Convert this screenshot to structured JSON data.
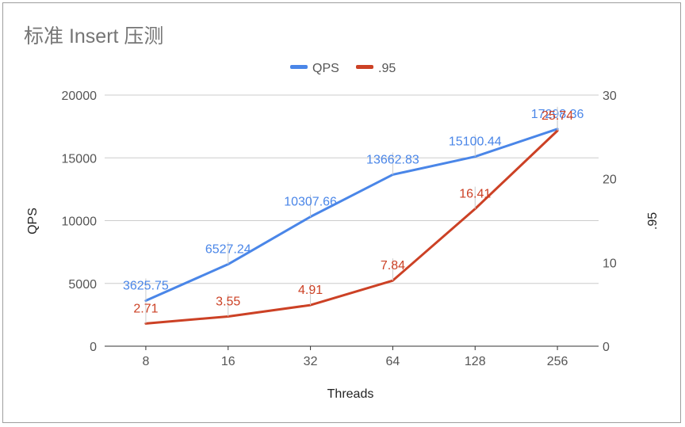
{
  "chart_data": {
    "type": "line",
    "title": "标准 Insert 压测",
    "xlabel": "Threads",
    "ylabel_left": "QPS",
    "ylabel_right": ".95",
    "categories": [
      "8",
      "16",
      "32",
      "64",
      "128",
      "256"
    ],
    "y_left": {
      "ylim": [
        0,
        20000
      ],
      "ticks": [
        "0",
        "5000",
        "10000",
        "15000",
        "20000"
      ]
    },
    "y_right": {
      "ylim": [
        0,
        30
      ],
      "ticks": [
        "0",
        "10",
        "20",
        "30"
      ]
    },
    "legend_position": "top",
    "grid": true,
    "series": [
      {
        "name": "QPS",
        "axis": "left",
        "color": "#4a86e8",
        "values": [
          3625.75,
          6527.24,
          10307.66,
          13662.83,
          15100.44,
          17298.36
        ],
        "labels": [
          "3625.75",
          "6527.24",
          "10307.66",
          "13662.83",
          "15100.44",
          "17298.36"
        ]
      },
      {
        "name": ".95",
        "axis": "right",
        "color": "#cc4125",
        "values": [
          2.71,
          3.55,
          4.91,
          7.84,
          16.41,
          25.74
        ],
        "labels": [
          "2.71",
          "3.55",
          "4.91",
          "7.84",
          "16.41",
          "25.74"
        ]
      }
    ]
  }
}
